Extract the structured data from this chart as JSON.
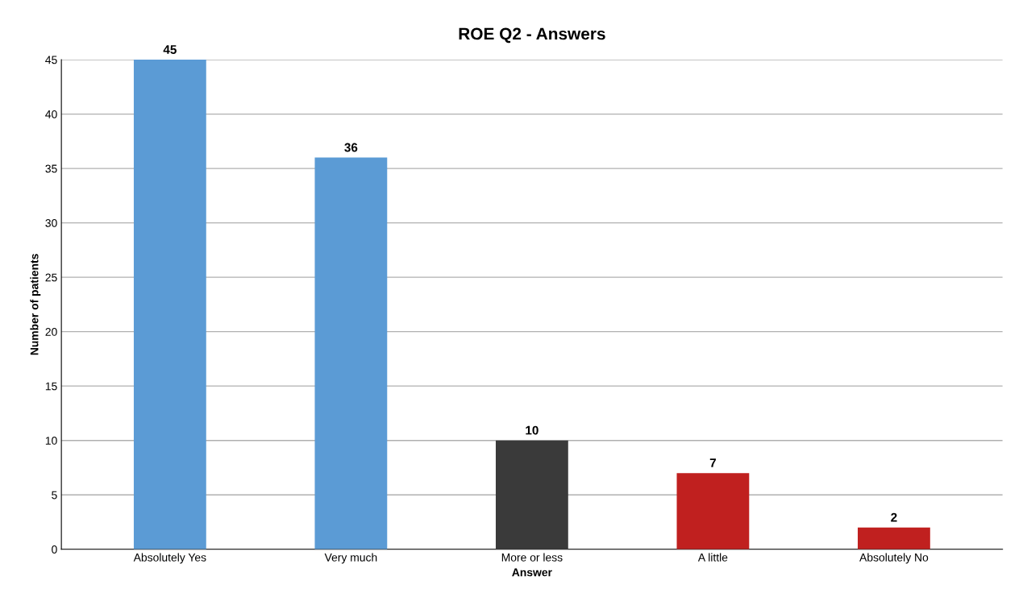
{
  "chart_data": {
    "type": "bar",
    "title": "ROE Q2 - Answers",
    "xlabel": "Answer",
    "ylabel": "Number of patients",
    "categories": [
      "Absolutely Yes",
      "Very much",
      "More or less",
      "A little",
      "Absolutely No"
    ],
    "values": [
      45,
      36,
      10,
      7,
      2
    ],
    "colors": [
      "#5b9bd5",
      "#5b9bd5",
      "#3a3a3a",
      "#c0201f",
      "#c0201f"
    ],
    "ylim": [
      0,
      45
    ],
    "yticks": [
      0,
      5,
      10,
      15,
      20,
      25,
      30,
      35,
      40,
      45
    ],
    "grid": "y",
    "data_labels": true
  }
}
